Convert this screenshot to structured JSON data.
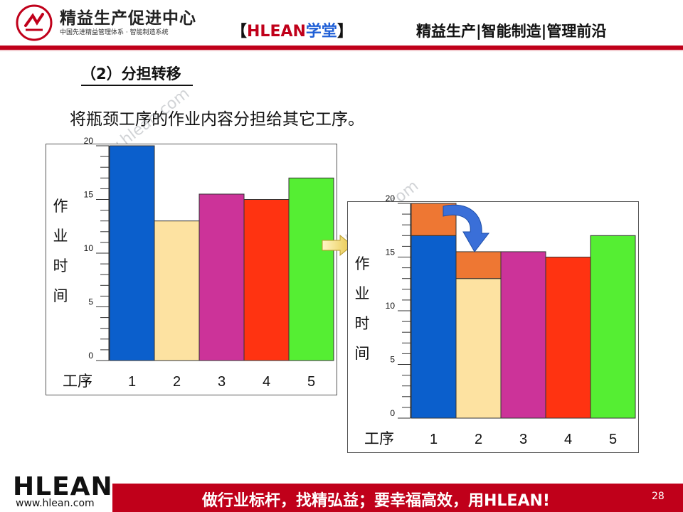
{
  "header": {
    "brand_title": "精益生产促进中心",
    "brand_subtitle": "中国先进精益管理体系 · 智能制造系统",
    "center_open": "【",
    "center_hlean": "HLEAN",
    "center_xuetang": "学堂",
    "center_close": "】",
    "right_text": "精益生产|智能制造|管理前沿"
  },
  "section_title": "（2）分担转移",
  "description": "将瓶颈工序的作业内容分担给其它工序。",
  "watermark": "www.hlean.com",
  "colors": {
    "brand_red": "#c0001a",
    "bar_1": "#0b5fcc",
    "bar_2": "#fde2a1",
    "bar_3": "#cc3399",
    "bar_4": "#ff3311",
    "bar_5": "#55ee33",
    "transfer": "#ee7733",
    "curved_arrow": "#3a6fd8"
  },
  "chart_data": [
    {
      "type": "bar",
      "categories": [
        "1",
        "2",
        "3",
        "4",
        "5"
      ],
      "values": [
        20,
        13,
        15.5,
        15,
        17
      ],
      "ylabel": "作业时间",
      "xlabel": "工序",
      "ylim": [
        0,
        20
      ],
      "yticks": [
        0,
        5,
        10,
        15,
        20
      ]
    },
    {
      "type": "bar",
      "stacked": true,
      "categories": [
        "1",
        "2",
        "3",
        "4",
        "5"
      ],
      "series": [
        {
          "values": [
            17,
            13,
            15.5,
            15,
            17
          ]
        },
        {
          "values": [
            3,
            2.5,
            0,
            0,
            0
          ]
        }
      ],
      "ylabel": "作业时间",
      "xlabel": "工序",
      "ylim": [
        0,
        20
      ],
      "yticks": [
        0,
        5,
        10,
        15,
        20
      ]
    }
  ],
  "footer": {
    "logo": "HLEAN",
    "url": "www.hlean.com",
    "slogan": "做行业标杆，找精弘益；要幸福高效，用HLEAN!",
    "page_number": "28"
  }
}
